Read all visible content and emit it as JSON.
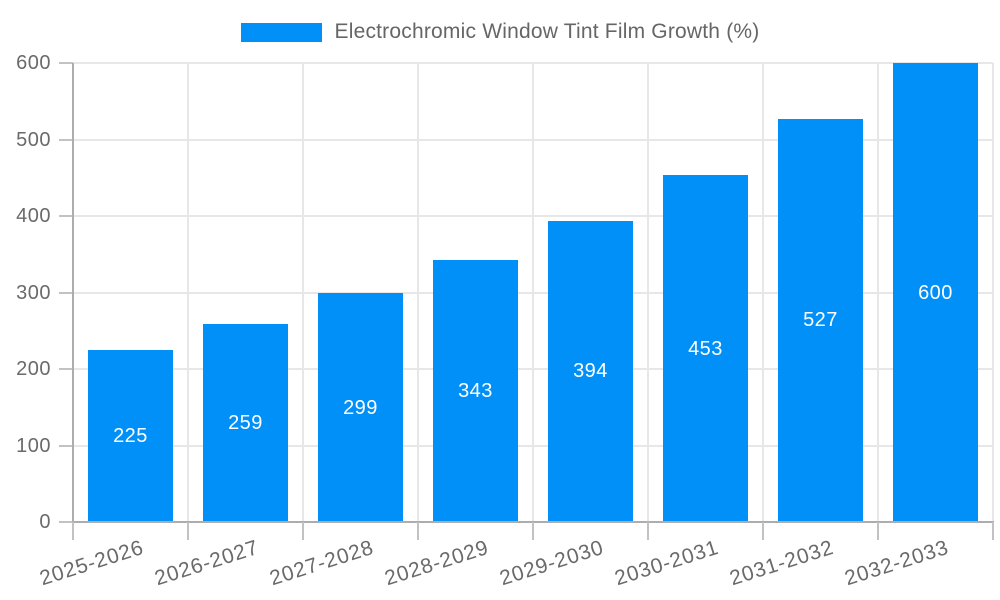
{
  "chart_data": {
    "type": "bar",
    "title": "Electrochromic Window Tint Film Growth (%)",
    "legend_label": "Electrochromic Window Tint Film Growth (%)",
    "legend_position": "top-center",
    "categories": [
      "2025-2026",
      "2026-2027",
      "2027-2028",
      "2028-2029",
      "2029-2030",
      "2030-2031",
      "2031-2032",
      "2032-2033"
    ],
    "values": [
      225,
      259,
      299,
      343,
      394,
      453,
      527,
      600
    ],
    "value_labels": [
      "225",
      "259",
      "299",
      "343",
      "394",
      "453",
      "527",
      "600"
    ],
    "xlabel": "",
    "ylabel": "",
    "ylim": [
      0,
      600
    ],
    "yticks": [
      0,
      100,
      200,
      300,
      400,
      500,
      600
    ],
    "ytick_labels": [
      "0",
      "100",
      "200",
      "300",
      "400",
      "500",
      "600"
    ],
    "grid": true,
    "colors": {
      "bar": "#0190F8",
      "value_label": "#FFFFFF",
      "axis_tick_label": "#6A6A6A",
      "title": "#666666",
      "gridline": "#E7E7E7",
      "axis_line": "#ADADAD",
      "tick_mark": "#C2C2C2",
      "background": "#FFFFFF"
    }
  }
}
